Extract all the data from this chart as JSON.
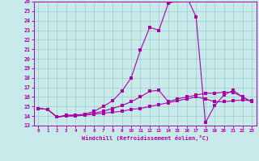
{
  "xlabel": "Windchill (Refroidissement éolien,°C)",
  "x": [
    0,
    1,
    2,
    3,
    4,
    5,
    6,
    7,
    8,
    9,
    10,
    11,
    12,
    13,
    14,
    15,
    16,
    17,
    18,
    19,
    20,
    21,
    22,
    23
  ],
  "line1": [
    14.8,
    14.7,
    13.9,
    14.1,
    14.1,
    14.1,
    14.2,
    14.3,
    14.4,
    14.5,
    14.7,
    14.8,
    15.0,
    15.2,
    15.4,
    15.6,
    15.8,
    16.0,
    15.8,
    15.5,
    15.5,
    15.6,
    15.7,
    15.6
  ],
  "line2": [
    14.8,
    14.7,
    13.9,
    14.0,
    14.0,
    14.1,
    14.3,
    14.5,
    14.8,
    15.1,
    15.5,
    16.0,
    16.6,
    16.7,
    15.5,
    15.8,
    16.0,
    16.2,
    16.4,
    16.4,
    16.5,
    16.5,
    16.0,
    15.5
  ],
  "line3": [
    14.8,
    14.7,
    13.9,
    14.0,
    14.1,
    14.2,
    14.5,
    15.0,
    15.6,
    16.6,
    18.0,
    20.9,
    23.3,
    23.0,
    25.8,
    26.1,
    26.5,
    24.4,
    13.3,
    15.1,
    16.2,
    16.7,
    16.0,
    15.5
  ],
  "line_color": "#aa00aa",
  "bg_color": "#c8eaea",
  "grid_color": "#99cccc",
  "xlim": [
    -0.5,
    23.5
  ],
  "ylim": [
    13,
    26
  ],
  "yticks": [
    13,
    14,
    15,
    16,
    17,
    18,
    19,
    20,
    21,
    22,
    23,
    24,
    25,
    26
  ],
  "xticks": [
    0,
    1,
    2,
    3,
    4,
    5,
    6,
    7,
    8,
    9,
    10,
    11,
    12,
    13,
    14,
    15,
    16,
    17,
    18,
    19,
    20,
    21,
    22,
    23
  ]
}
